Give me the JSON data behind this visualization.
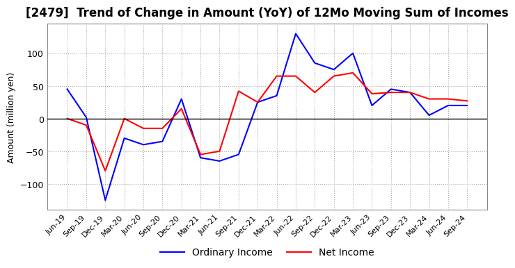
{
  "title": "[2479]  Trend of Change in Amount (YoY) of 12Mo Moving Sum of Incomes",
  "ylabel": "Amount (million yen)",
  "labels": [
    "Jun-19",
    "Sep-19",
    "Dec-19",
    "Mar-20",
    "Jun-20",
    "Sep-20",
    "Dec-20",
    "Mar-21",
    "Jun-21",
    "Sep-21",
    "Dec-21",
    "Mar-22",
    "Jun-22",
    "Sep-22",
    "Dec-22",
    "Mar-23",
    "Jun-23",
    "Sep-23",
    "Dec-23",
    "Mar-24",
    "Jun-24",
    "Sep-24"
  ],
  "ordinary_income": [
    45,
    2,
    -125,
    -30,
    -40,
    -35,
    30,
    -60,
    -65,
    -55,
    25,
    35,
    130,
    85,
    75,
    100,
    20,
    45,
    40,
    5,
    20,
    20
  ],
  "net_income": [
    0,
    -10,
    -80,
    0,
    -15,
    -15,
    15,
    -55,
    -50,
    42,
    25,
    65,
    65,
    40,
    65,
    70,
    38,
    40,
    40,
    30,
    30,
    27
  ],
  "ordinary_color": "#0000ff",
  "net_color": "#ff0000",
  "ylim": [
    -140,
    145
  ],
  "yticks": [
    -100,
    -50,
    0,
    50,
    100
  ],
  "background_color": "#ffffff",
  "grid_color": "#aaaaaa",
  "title_fontsize": 12,
  "axis_fontsize": 9,
  "legend_fontsize": 10,
  "linewidth": 1.5
}
